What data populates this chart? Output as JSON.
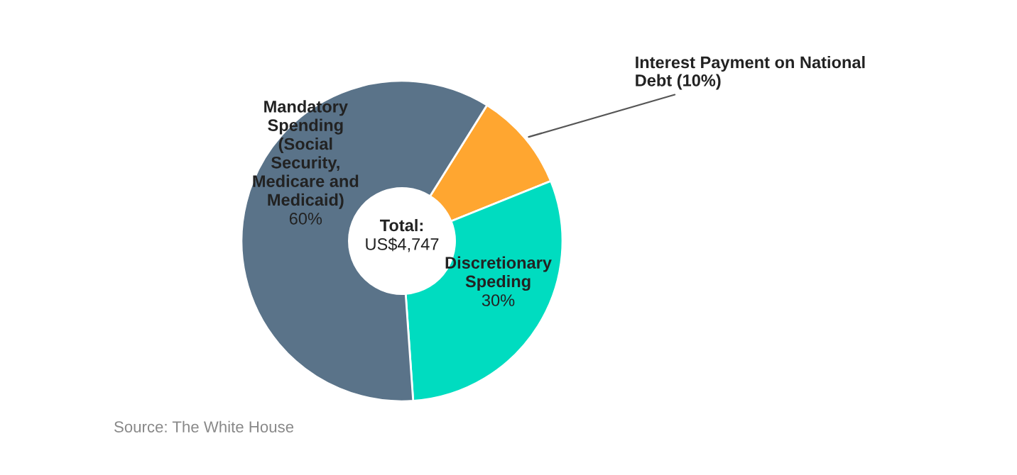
{
  "chart_data": {
    "type": "donut",
    "categories": [
      "Interest Payment on National\nDebt",
      "Discretionary\nSpeding",
      "Mandatory\nSpending\n(Social\nSecurity,\nMedicare and\nMedicaid)"
    ],
    "values": [
      10,
      30,
      60
    ],
    "colors": [
      "#ffa630",
      "#00dcc0",
      "#5a7389"
    ],
    "value_labels": [
      "(10%)",
      "30%",
      "60%"
    ],
    "annotations": [
      "Total:",
      "US$4,747",
      "Source: The White House"
    ],
    "legend": false
  }
}
